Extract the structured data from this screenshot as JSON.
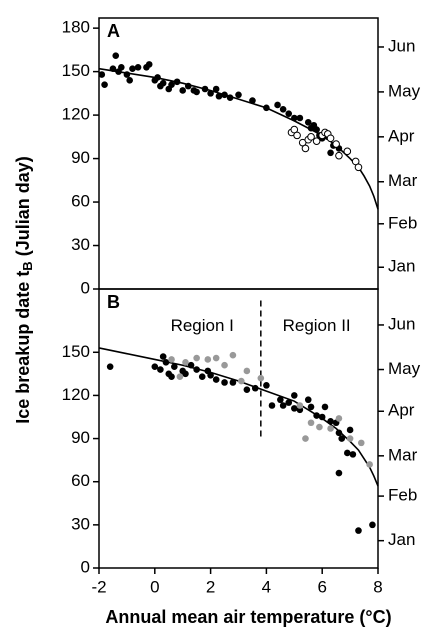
{
  "chart_data": [
    {
      "type": "scatter",
      "panel": "A",
      "ylabel": {
        "text": "Ice breakup date t",
        "sub": "B",
        "rest": " (Julian day)"
      },
      "xlim": [
        -2,
        8
      ],
      "ylim": [
        0,
        187
      ],
      "yticks": [
        0,
        30,
        60,
        90,
        120,
        150,
        180
      ],
      "y2lim": [
        0,
        187
      ],
      "y2ticks": [
        {
          "value": 15,
          "label": "Jan"
        },
        {
          "value": 45,
          "label": "Feb"
        },
        {
          "value": 74,
          "label": "Mar"
        },
        {
          "value": 105,
          "label": "Apr"
        },
        {
          "value": 136,
          "label": "May"
        },
        {
          "value": 167,
          "label": "Jun"
        }
      ],
      "series": [
        {
          "type": "line",
          "color": "#000000",
          "x": [
            -2,
            -1,
            0,
            1,
            2,
            3,
            4,
            5,
            5.5,
            6,
            6.5,
            7,
            7.3,
            7.5,
            7.7,
            7.85,
            8
          ],
          "values": [
            152,
            149,
            146,
            142,
            137,
            131,
            125,
            116,
            111,
            106,
            99,
            90,
            84,
            78,
            71,
            64,
            55
          ]
        },
        {
          "type": "scatter",
          "marker": "filled",
          "color": "#000000",
          "x": [
            -1.9,
            -1.8,
            -1.5,
            -1.4,
            -1.3,
            -1.2,
            -1,
            -0.9,
            -0.8,
            -0.6,
            -0.3,
            -0.2,
            0,
            0.1,
            0.2,
            0.3,
            0.5,
            0.6,
            0.8,
            1,
            1.2,
            1.4,
            1.5,
            1.8,
            2,
            2.2,
            2.3,
            2.5,
            2.7,
            3,
            3.5,
            4,
            4.4,
            4.6,
            4.8,
            5,
            5.2,
            5.5,
            5.6,
            5.7,
            5.8,
            5.9,
            6,
            6.2,
            6.4,
            6.6,
            6.3
          ],
          "values": [
            148,
            141,
            152,
            161,
            150,
            153,
            148,
            144,
            152,
            153,
            153,
            155,
            144,
            146,
            140,
            142,
            138,
            141,
            143,
            137,
            140,
            137,
            136,
            138,
            135,
            138,
            133,
            134,
            132,
            134,
            130,
            125,
            127,
            124,
            121,
            118,
            118,
            115,
            111,
            113,
            110,
            106,
            104,
            105,
            99,
            97,
            94
          ]
        },
        {
          "type": "scatter",
          "marker": "open",
          "color": "#000000",
          "x": [
            4.9,
            5,
            5.1,
            5.3,
            5.4,
            5.5,
            5.6,
            5.8,
            6,
            6.1,
            6.2,
            6.3,
            6.5,
            6.6,
            6.9,
            7.2,
            7.3
          ],
          "values": [
            108,
            110,
            106,
            101,
            97,
            103,
            105,
            102,
            106,
            108,
            107,
            104,
            100,
            92,
            95,
            88,
            84
          ]
        }
      ]
    },
    {
      "type": "scatter",
      "panel": "B",
      "xlabel": "Annual mean air temperature (°C)",
      "xlim": [
        -2,
        8
      ],
      "ylim": [
        0,
        194
      ],
      "xticks": [
        -2,
        0,
        2,
        4,
        6,
        8
      ],
      "yticks": [
        0,
        30,
        60,
        90,
        120,
        150
      ],
      "y2lim": [
        0,
        194
      ],
      "y2ticks": [
        {
          "value": 19,
          "label": "Jan"
        },
        {
          "value": 50,
          "label": "Feb"
        },
        {
          "value": 78,
          "label": "Mar"
        },
        {
          "value": 109,
          "label": "Apr"
        },
        {
          "value": 138,
          "label": "May"
        },
        {
          "value": 169,
          "label": "Jun"
        }
      ],
      "annotations": [
        {
          "text": "Region I",
          "x": 1.7,
          "y": 168
        },
        {
          "text": "Region II",
          "x": 5.8,
          "y": 168
        }
      ],
      "divider": {
        "x": 3.8,
        "y": [
          90,
          186
        ]
      },
      "series": [
        {
          "type": "line",
          "color": "#000000",
          "x": [
            -2,
            -1,
            0,
            1,
            2,
            3,
            4,
            5,
            5.5,
            6,
            6.5,
            7,
            7.3,
            7.5,
            7.7,
            7.85,
            8
          ],
          "values": [
            153,
            149,
            145,
            141,
            136,
            130,
            123,
            116,
            110,
            104,
            97,
            88,
            82,
            76,
            70,
            64,
            57
          ]
        },
        {
          "type": "scatter",
          "marker": "filled",
          "color": "#000000",
          "x": [
            -1.6,
            0,
            0.2,
            0.3,
            0.4,
            0.5,
            0.6,
            0.7,
            1,
            1.1,
            1.3,
            1.5,
            1.7,
            1.9,
            2,
            2.2,
            2.5,
            2.8,
            3.3,
            3.6,
            4,
            4.2,
            4.5,
            4.6,
            4.8,
            5,
            5,
            5.2,
            5.5,
            5.6,
            5.8,
            6,
            6.1,
            6.3,
            6.5,
            6.6,
            6.7,
            6.9,
            7,
            7.1,
            6.6,
            7.3,
            7.8
          ],
          "values": [
            140,
            140,
            138,
            147,
            143,
            135,
            133,
            140,
            137,
            135,
            141,
            138,
            133,
            137,
            134,
            131,
            129,
            129,
            124,
            125,
            127,
            113,
            117,
            113,
            115,
            120,
            111,
            110,
            117,
            112,
            106,
            105,
            112,
            102,
            101,
            94,
            90,
            80,
            96,
            79,
            66,
            26,
            30
          ]
        },
        {
          "type": "scatter",
          "marker": "filled",
          "color": "#999999",
          "x": [
            0.6,
            0.9,
            1.1,
            1.5,
            1.9,
            2.2,
            2.5,
            2.8,
            3.1,
            3.3,
            3.8,
            5.2,
            5.4,
            5.6,
            5.9,
            6.3,
            6.6,
            7,
            7.4,
            7.7
          ],
          "values": [
            145,
            133,
            143,
            146,
            145,
            146,
            141,
            148,
            130,
            137,
            132,
            113,
            90,
            101,
            98,
            97,
            104,
            90,
            87,
            72
          ]
        }
      ]
    }
  ]
}
